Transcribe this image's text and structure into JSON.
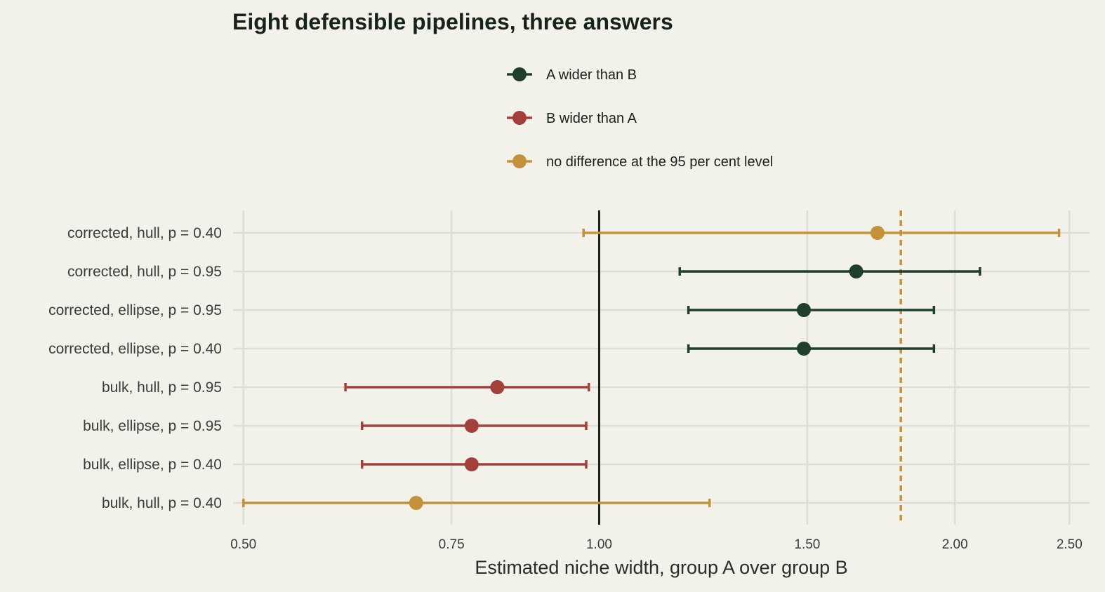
{
  "chart_data": {
    "type": "scatter",
    "title": "Eight defensible pipelines, three answers",
    "xlabel": "Estimated niche width, group A over group B",
    "ylabel": "",
    "x_scale": "log",
    "xlim": [
      0.49,
      2.6
    ],
    "x_ticks": [
      0.5,
      0.75,
      1.0,
      1.5,
      2.0,
      2.5
    ],
    "x_tick_labels": [
      "0.50",
      "0.75",
      "1.00",
      "1.50",
      "2.00",
      "2.50"
    ],
    "grid": true,
    "legend_position": "top-center",
    "reference_lines": [
      {
        "x": 1.0,
        "style": "solid",
        "color": "#17231a"
      },
      {
        "x": 1.8,
        "style": "dashed",
        "color": "#c3923a"
      }
    ],
    "categories_top_to_bottom": [
      "corrected, hull, p = 0.40",
      "corrected, hull, p = 0.95",
      "corrected, ellipse, p = 0.95",
      "corrected, ellipse, p = 0.40",
      "bulk, hull, p = 0.95",
      "bulk, ellipse, p = 0.95",
      "bulk, ellipse, p = 0.40",
      "bulk, hull, p = 0.40"
    ],
    "series": [
      {
        "name": "A wider than B",
        "color": "#1f3f2c"
      },
      {
        "name": "B wider than A",
        "color": "#a3403c"
      },
      {
        "name": "no difference at the 95 per cent level",
        "color": "#c3923a"
      }
    ],
    "points": [
      {
        "label": "corrected, hull, p = 0.40",
        "estimate": 1.72,
        "lower": 0.97,
        "upper": 2.45,
        "series": 2
      },
      {
        "label": "corrected, hull, p = 0.95",
        "estimate": 1.65,
        "lower": 1.17,
        "upper": 2.1,
        "series": 0
      },
      {
        "label": "corrected, ellipse, p = 0.95",
        "estimate": 1.49,
        "lower": 1.19,
        "upper": 1.92,
        "series": 0
      },
      {
        "label": "corrected, ellipse, p = 0.40",
        "estimate": 1.49,
        "lower": 1.19,
        "upper": 1.92,
        "series": 0
      },
      {
        "label": "bulk, hull, p = 0.95",
        "estimate": 0.82,
        "lower": 0.61,
        "upper": 0.98,
        "series": 1
      },
      {
        "label": "bulk, ellipse, p = 0.95",
        "estimate": 0.78,
        "lower": 0.63,
        "upper": 0.975,
        "series": 1
      },
      {
        "label": "bulk, ellipse, p = 0.40",
        "estimate": 0.78,
        "lower": 0.63,
        "upper": 0.975,
        "series": 1
      },
      {
        "label": "bulk, hull, p = 0.40",
        "estimate": 0.7,
        "lower": 0.5,
        "upper": 1.24,
        "series": 2
      }
    ]
  }
}
